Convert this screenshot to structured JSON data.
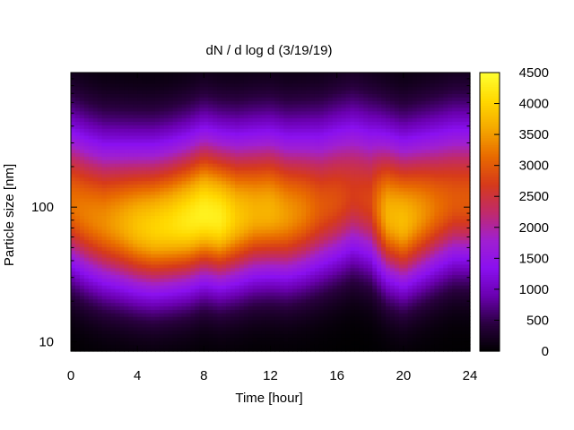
{
  "chart_data": {
    "type": "heatmap",
    "title": "dN / d log d (3/19/19)",
    "xlabel": "Time [hour]",
    "ylabel": "Particle size [nm]",
    "xlim": [
      0,
      24
    ],
    "ylim_nm": [
      8.5,
      1000
    ],
    "yscale": "log",
    "x_ticks": [
      "0",
      "4",
      "8",
      "12",
      "16",
      "20",
      "24"
    ],
    "y_ticks": [
      "10",
      "100"
    ],
    "colorbar": {
      "range": [
        0,
        4500
      ],
      "ticks": [
        "0",
        "500",
        "1000",
        "1500",
        "2000",
        "2500",
        "3000",
        "3500",
        "4000",
        "4500"
      ],
      "colormap": [
        "#000000",
        "#2a0040",
        "#6a00b0",
        "#8a10f0",
        "#a020d0",
        "#c02a6a",
        "#d63a1a",
        "#e86a00",
        "#f5a800",
        "#ffd800",
        "#ffff30"
      ]
    },
    "profile": {
      "peak_log_diameter": [
        2.02,
        1.95,
        1.9,
        1.88,
        1.86,
        1.85,
        1.87,
        1.9,
        1.95,
        1.92,
        1.93,
        1.96,
        1.97,
        1.95,
        1.97,
        2.0,
        2.05,
        2.1,
        2.05,
        1.95,
        1.9,
        1.95,
        2.0,
        2.05,
        2.05
      ],
      "peak_concentration": [
        3200,
        3300,
        3400,
        3600,
        3850,
        4000,
        4100,
        4250,
        4350,
        4300,
        3900,
        3700,
        3700,
        3500,
        3300,
        3000,
        2900,
        2700,
        2800,
        3700,
        3800,
        3500,
        3200,
        3000,
        3000
      ],
      "hours": [
        0,
        1,
        2,
        3,
        4,
        5,
        6,
        7,
        8,
        9,
        10,
        11,
        12,
        13,
        14,
        15,
        16,
        17,
        18,
        19,
        20,
        21,
        22,
        23,
        24
      ]
    }
  }
}
